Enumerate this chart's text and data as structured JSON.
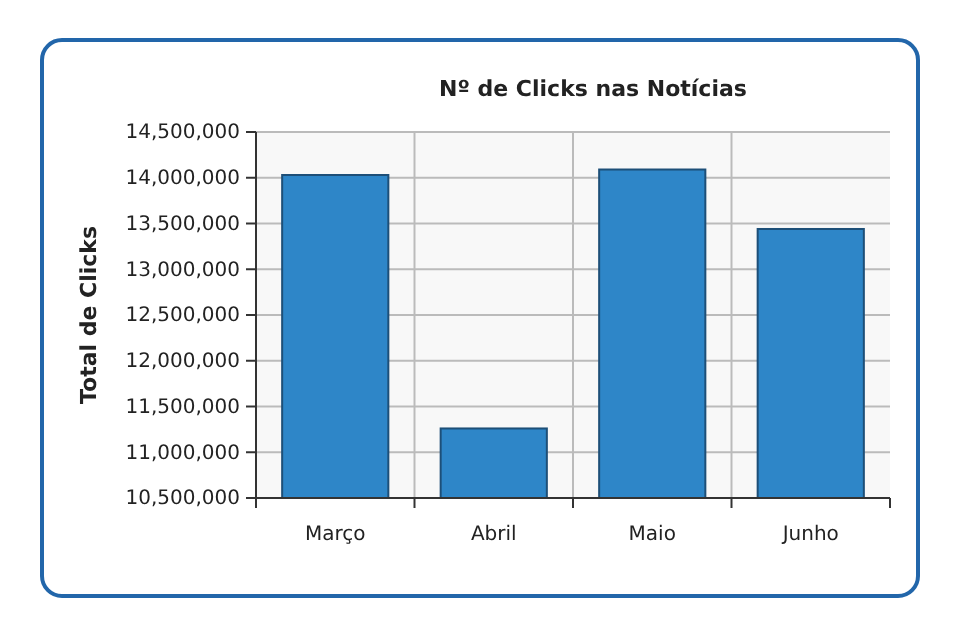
{
  "chart_data": {
    "type": "bar",
    "title": "Nº de Clicks nas Notícias",
    "ylabel": "Total de Clicks",
    "categories": [
      "Março",
      "Abril",
      "Maio",
      "Junho"
    ],
    "values": [
      14030000,
      11260000,
      14090000,
      13440000
    ],
    "color": "#2e86c8",
    "ylim": [
      10500000,
      14500000
    ],
    "yticks": [
      {
        "value": 10500000,
        "label": "10,500,000"
      },
      {
        "value": 11000000,
        "label": "11,000,000"
      },
      {
        "value": 11500000,
        "label": "11,500,000"
      },
      {
        "value": 12000000,
        "label": "12,000,000"
      },
      {
        "value": 12500000,
        "label": "12,500,000"
      },
      {
        "value": 13000000,
        "label": "13,000,000"
      },
      {
        "value": 13500000,
        "label": "13,500,000"
      },
      {
        "value": 14000000,
        "label": "14,000,000"
      },
      {
        "value": 14500000,
        "label": "14,500,000"
      }
    ],
    "grid": true
  }
}
